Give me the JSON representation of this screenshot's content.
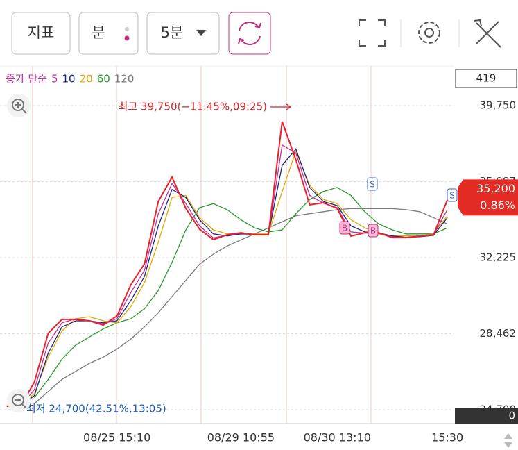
{
  "toolbar": {
    "indicator": "지표",
    "unit": "분",
    "interval": "5분"
  },
  "chart_data": {
    "type": "line",
    "legend_title": "종가 단순",
    "categories": [
      null,
      null,
      null,
      null,
      null,
      null,
      null,
      null,
      "08/25 15:10",
      null,
      null,
      null,
      null,
      null,
      null,
      null,
      null,
      "08/29 10:55",
      null,
      null,
      null,
      null,
      null,
      null,
      "08/30 13:10",
      null,
      null,
      null,
      null,
      null,
      null,
      null,
      "15:30"
    ],
    "values": [
      24870,
      24870,
      26070,
      28480,
      29170,
      29170,
      29100,
      28890,
      29340,
      30880,
      31920,
      35010,
      36210,
      34660,
      33630,
      33120,
      33360,
      33460,
      33360,
      33360,
      38960,
      37070,
      34840,
      34940,
      34660,
      33290,
      33460,
      33460,
      33220,
      33220,
      33290,
      33360,
      35080
    ],
    "color": "#e8202a",
    "series": [
      {
        "name": "5",
        "color": "#c0309a",
        "values": [
          24870,
          24870,
          25700,
          28000,
          29000,
          29200,
          29100,
          28950,
          29200,
          30500,
          31600,
          34400,
          35900,
          34900,
          33800,
          33200,
          33350,
          33430,
          33370,
          33360,
          37800,
          37400,
          35300,
          34920,
          34700,
          33500,
          33440,
          33430,
          33250,
          33220,
          33280,
          33350,
          34600
        ]
      },
      {
        "name": "10",
        "color": "#1a237e",
        "values": [
          24870,
          24870,
          25400,
          27500,
          28800,
          29100,
          29100,
          29000,
          29100,
          30100,
          31300,
          33800,
          35600,
          35200,
          34100,
          33400,
          33300,
          33400,
          33380,
          33360,
          36800,
          37600,
          35700,
          35000,
          34800,
          33800,
          33500,
          33450,
          33300,
          33230,
          33260,
          33330,
          34200
        ]
      },
      {
        "name": "20",
        "color": "#e0a800",
        "values": [
          24900,
          24900,
          25500,
          27300,
          28600,
          29200,
          29300,
          29100,
          29000,
          29800,
          31000,
          33000,
          35200,
          35300,
          34200,
          33600,
          33400,
          33400,
          33400,
          33400,
          35500,
          37500,
          35800,
          35100,
          34900,
          34100,
          33700,
          33400,
          33300,
          33300,
          33300,
          33400,
          34300
        ]
      },
      {
        "name": "60",
        "color": "#2a9a2a",
        "values": [
          null,
          null,
          25300,
          26200,
          27200,
          27900,
          28300,
          28700,
          29000,
          29200,
          29700,
          30600,
          32000,
          33600,
          34700,
          34900,
          34600,
          34100,
          33700,
          33500,
          33600,
          34400,
          35100,
          35500,
          35700,
          35300,
          34500,
          33900,
          33600,
          33400,
          33400,
          33400,
          33700
        ]
      },
      {
        "name": "120",
        "color": "#7a7a7a",
        "values": [
          null,
          null,
          25000,
          25600,
          26200,
          26600,
          27000,
          27300,
          27700,
          28200,
          28800,
          29500,
          30300,
          31100,
          31900,
          32400,
          32800,
          33100,
          33400,
          33700,
          34000,
          34300,
          34400,
          34500,
          34600,
          34650,
          34650,
          34650,
          34650,
          34600,
          34500,
          34200,
          33900
        ]
      }
    ],
    "ylim": [
      24013,
      41709
    ],
    "yticks": [
      {
        "value": 39750,
        "label": "39,750"
      },
      {
        "value": 35987,
        "label": "35,987"
      },
      {
        "value": 32225,
        "label": "32,225"
      },
      {
        "value": 28462,
        "label": "28,462"
      },
      {
        "value": 24700,
        "label": "24,700"
      }
    ],
    "grid": true,
    "high_annotation": "최고 39,750(−11.45%,09:25)",
    "low_annotation": "최저 24,700(42.51%,13:05)",
    "volume_top": "419",
    "volume_bottom": "0",
    "current_price": {
      "value": 35200,
      "label": "35,200"
    },
    "current_change": "0.86%",
    "markers": [
      "S",
      "B",
      "B",
      "S"
    ]
  }
}
